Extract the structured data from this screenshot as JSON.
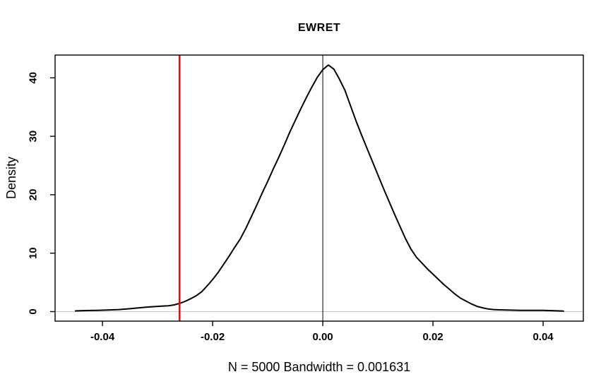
{
  "chart_data": {
    "type": "line",
    "title": "EWRET",
    "xlabel": "N = 5000   Bandwidth = 0.001631",
    "ylabel": "Density",
    "xlim": [
      -0.0486,
      0.0473
    ],
    "ylim": [
      -1.63,
      43.9
    ],
    "grid": false,
    "legend": null,
    "x_ticks": [
      -0.04,
      -0.02,
      0.0,
      0.02,
      0.04
    ],
    "x_tick_labels": [
      "-0.04",
      "-0.02",
      "0.00",
      "0.02",
      "0.04"
    ],
    "y_ticks": [
      0,
      10,
      20,
      30,
      40
    ],
    "y_tick_labels": [
      "0",
      "10",
      "20",
      "30",
      "40"
    ],
    "colors": {
      "curve": "#000000",
      "reference_line": "#FF0000",
      "zero_line": "#C8C8C8",
      "axis": "#000000",
      "background": "#FFFFFF"
    },
    "hlines": [
      {
        "y": 0,
        "color": "#C8C8C8",
        "width": 1,
        "name": "zero-density-hline"
      }
    ],
    "vlines": [
      {
        "x": 0.0,
        "color": "#000000",
        "width": 1,
        "name": "zero-vertical-line"
      },
      {
        "x": -0.026,
        "color": "#FF0000",
        "width": 2.5,
        "name": "red-reference-line"
      }
    ],
    "series": [
      {
        "name": "kernel-density-estimate",
        "color": "#000000",
        "points": [
          [
            -0.0449,
            0.12
          ],
          [
            -0.043,
            0.18
          ],
          [
            -0.041,
            0.22
          ],
          [
            -0.039,
            0.27
          ],
          [
            -0.037,
            0.35
          ],
          [
            -0.035,
            0.5
          ],
          [
            -0.033,
            0.68
          ],
          [
            -0.0315,
            0.8
          ],
          [
            -0.03,
            0.9
          ],
          [
            -0.029,
            0.95
          ],
          [
            -0.028,
            1.0
          ],
          [
            -0.027,
            1.15
          ],
          [
            -0.026,
            1.4
          ],
          [
            -0.025,
            1.75
          ],
          [
            -0.024,
            2.2
          ],
          [
            -0.023,
            2.7
          ],
          [
            -0.022,
            3.4
          ],
          [
            -0.021,
            4.4
          ],
          [
            -0.02,
            5.5
          ],
          [
            -0.019,
            6.7
          ],
          [
            -0.018,
            8.1
          ],
          [
            -0.017,
            9.5
          ],
          [
            -0.016,
            11.0
          ],
          [
            -0.015,
            12.4
          ],
          [
            -0.014,
            14.2
          ],
          [
            -0.013,
            16.2
          ],
          [
            -0.012,
            18.2
          ],
          [
            -0.011,
            20.3
          ],
          [
            -0.01,
            22.3
          ],
          [
            -0.009,
            24.4
          ],
          [
            -0.008,
            26.4
          ],
          [
            -0.007,
            28.5
          ],
          [
            -0.006,
            30.7
          ],
          [
            -0.005,
            32.7
          ],
          [
            -0.004,
            34.7
          ],
          [
            -0.003,
            36.6
          ],
          [
            -0.002,
            38.4
          ],
          [
            -0.001,
            40.1
          ],
          [
            0.0,
            41.4
          ],
          [
            0.001,
            42.2
          ],
          [
            0.002,
            41.5
          ],
          [
            0.003,
            39.8
          ],
          [
            0.004,
            37.9
          ],
          [
            0.005,
            35.3
          ],
          [
            0.006,
            32.7
          ],
          [
            0.007,
            30.3
          ],
          [
            0.008,
            28.0
          ],
          [
            0.009,
            25.7
          ],
          [
            0.01,
            23.4
          ],
          [
            0.011,
            21.1
          ],
          [
            0.012,
            18.9
          ],
          [
            0.013,
            16.7
          ],
          [
            0.014,
            14.6
          ],
          [
            0.015,
            12.5
          ],
          [
            0.016,
            10.7
          ],
          [
            0.017,
            9.3
          ],
          [
            0.018,
            8.3
          ],
          [
            0.019,
            7.3
          ],
          [
            0.02,
            6.4
          ],
          [
            0.021,
            5.5
          ],
          [
            0.022,
            4.6
          ],
          [
            0.023,
            3.8
          ],
          [
            0.024,
            3.0
          ],
          [
            0.025,
            2.3
          ],
          [
            0.026,
            1.8
          ],
          [
            0.027,
            1.3
          ],
          [
            0.028,
            0.9
          ],
          [
            0.029,
            0.65
          ],
          [
            0.03,
            0.45
          ],
          [
            0.031,
            0.35
          ],
          [
            0.032,
            0.3
          ],
          [
            0.034,
            0.25
          ],
          [
            0.036,
            0.22
          ],
          [
            0.038,
            0.2
          ],
          [
            0.04,
            0.2
          ],
          [
            0.042,
            0.15
          ],
          [
            0.0437,
            0.1
          ]
        ]
      }
    ]
  }
}
